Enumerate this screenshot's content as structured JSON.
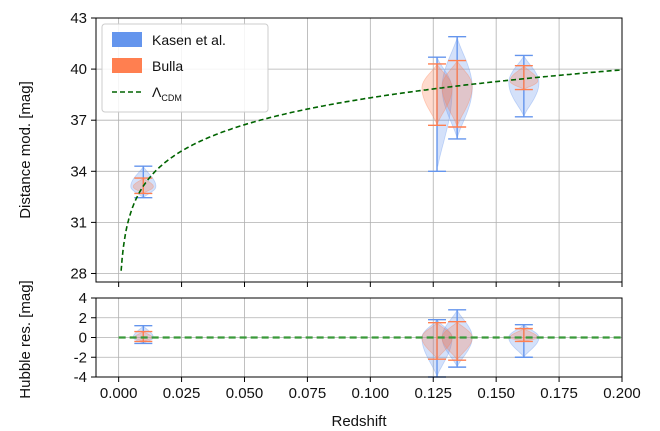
{
  "chart_data": [
    {
      "type": "violin",
      "ylabel": "Distance mod. [mag]",
      "ylim": [
        27.5,
        43
      ],
      "yticks": [
        28,
        31,
        34,
        37,
        40,
        43
      ],
      "xlim": [
        -0.009,
        0.2
      ],
      "grid": true,
      "legend": {
        "placement": "top-left",
        "entries": [
          {
            "label": "Kasen et al.",
            "color": "#6495ed",
            "kind": "patch"
          },
          {
            "label": "Bulla",
            "color": "#ff7f50",
            "kind": "patch"
          },
          {
            "label": "Λ",
            "subscript": "CDM",
            "color": "#006400",
            "kind": "dashed-line"
          }
        ]
      },
      "series": [
        {
          "name": "Kasen et al.",
          "color": "#6495ed",
          "violins": [
            {
              "x": 0.0098,
              "center": 33.1,
              "min": 32.45,
              "max": 34.3,
              "width": 0.01
            },
            {
              "x": 0.1265,
              "center": 38.8,
              "min": 34.0,
              "max": 40.7,
              "width": 0.012
            },
            {
              "x": 0.1345,
              "center": 38.9,
              "min": 35.9,
              "max": 41.9,
              "width": 0.012
            },
            {
              "x": 0.161,
              "center": 39.2,
              "min": 37.2,
              "max": 40.8,
              "width": 0.012
            }
          ]
        },
        {
          "name": "Bulla",
          "color": "#ff7f50",
          "violins": [
            {
              "x": 0.0098,
              "center": 33.1,
              "min": 32.7,
              "max": 33.6,
              "width": 0.008
            },
            {
              "x": 0.1265,
              "center": 38.9,
              "min": 36.7,
              "max": 40.3,
              "width": 0.012
            },
            {
              "x": 0.1345,
              "center": 39.0,
              "min": 36.6,
              "max": 40.5,
              "width": 0.012
            },
            {
              "x": 0.161,
              "center": 39.3,
              "min": 38.8,
              "max": 40.2,
              "width": 0.011
            }
          ]
        }
      ],
      "model_curve": {
        "name": "Λ_CDM",
        "color": "#006400",
        "H0": 70,
        "Om": 0.3,
        "x_range": [
          0.001,
          0.2
        ]
      }
    },
    {
      "type": "violin",
      "xlabel": "Redshift",
      "ylabel": "Hubble res. [mag]",
      "ylim": [
        -4,
        4
      ],
      "yticks": [
        -4,
        -2,
        0,
        2,
        4
      ],
      "xlim": [
        -0.009,
        0.2
      ],
      "xticks": [
        "0.000",
        "0.025",
        "0.050",
        "0.075",
        "0.100",
        "0.125",
        "0.150",
        "0.175",
        "0.200"
      ],
      "grid": true,
      "series": [
        {
          "name": "Kasen et al.",
          "color": "#6495ed",
          "violins": [
            {
              "x": 0.0098,
              "center": 0.0,
              "min": -0.6,
              "max": 1.2,
              "width": 0.008
            },
            {
              "x": 0.1265,
              "center": 0.0,
              "min": -4.0,
              "max": 1.8,
              "width": 0.012
            },
            {
              "x": 0.1345,
              "center": 0.0,
              "min": -3.0,
              "max": 2.8,
              "width": 0.012
            },
            {
              "x": 0.161,
              "center": 0.0,
              "min": -2.0,
              "max": 1.3,
              "width": 0.012
            }
          ]
        },
        {
          "name": "Bulla",
          "color": "#ff7f50",
          "violins": [
            {
              "x": 0.0098,
              "center": 0.0,
              "min": -0.4,
              "max": 0.6,
              "width": 0.007
            },
            {
              "x": 0.1265,
              "center": 0.0,
              "min": -2.2,
              "max": 1.5,
              "width": 0.012
            },
            {
              "x": 0.1345,
              "center": 0.0,
              "min": -2.3,
              "max": 1.6,
              "width": 0.012
            },
            {
              "x": 0.161,
              "center": 0.0,
              "min": -0.4,
              "max": 0.9,
              "width": 0.011
            }
          ]
        }
      ],
      "zero_line": {
        "y": 0,
        "color": "#3a9a3a"
      }
    }
  ]
}
